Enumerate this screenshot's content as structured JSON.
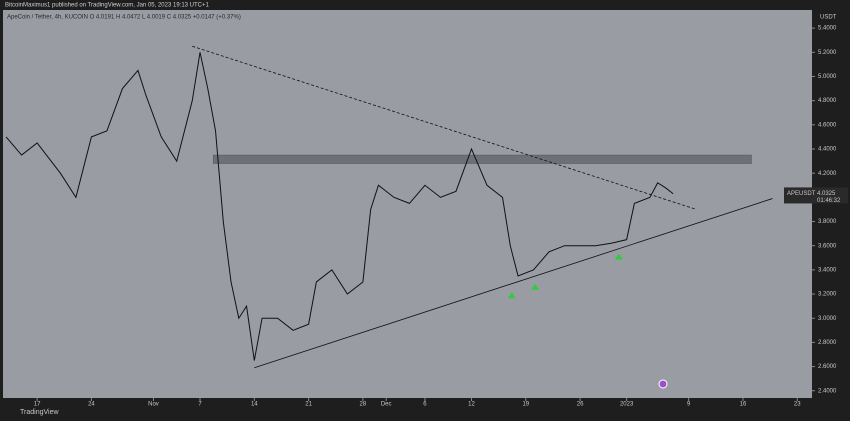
{
  "header": {
    "publisher": "BitcoinMaximus1 published on TradingView.com, Jan 05, 2023 19:13 UTC+1",
    "symbol_line": "ApeCoin / Tether, 4h, KUCOIN  O 4.0191  H 4.0472  L 4.0019  C 4.0325  +0.0147 (+0.37%)"
  },
  "footer": {
    "brand": "TradingView"
  },
  "chart_data": {
    "type": "line",
    "currency": "USDT",
    "series_name": "APEUSDT",
    "last_price": "4.0325",
    "countdown": "01:46:32",
    "color": "#111111",
    "x": [
      -4,
      -2,
      0,
      3,
      5,
      7,
      9,
      11,
      13,
      14,
      16,
      18,
      20,
      21,
      22,
      23,
      24,
      25,
      26,
      27,
      28,
      29,
      31,
      33,
      35,
      36,
      38,
      40,
      42,
      43,
      44,
      46,
      48,
      50,
      52,
      54,
      56,
      58,
      60,
      61,
      62,
      64,
      66,
      68,
      70,
      72,
      74,
      76,
      77,
      79,
      80,
      81,
      82
    ],
    "values": [
      4.5,
      4.35,
      4.45,
      4.2,
      4.0,
      4.5,
      4.55,
      4.9,
      5.05,
      4.85,
      4.5,
      4.3,
      4.8,
      5.2,
      4.9,
      4.55,
      3.8,
      3.3,
      3.0,
      3.1,
      2.65,
      3.0,
      3.0,
      2.9,
      2.95,
      3.3,
      3.4,
      3.2,
      3.3,
      3.9,
      4.1,
      4.0,
      3.95,
      4.1,
      4.0,
      4.05,
      4.4,
      4.1,
      4.0,
      3.6,
      3.35,
      3.4,
      3.55,
      3.6,
      3.6,
      3.6,
      3.62,
      3.65,
      3.95,
      4.0,
      4.12,
      4.08,
      4.03
    ],
    "xlim": [
      -4.4,
      99.9
    ],
    "ylim": [
      2.34,
      5.55
    ],
    "xticks": [
      {
        "value": 0,
        "label": "17"
      },
      {
        "value": 7,
        "label": "24"
      },
      {
        "value": 15,
        "label": "Nov"
      },
      {
        "value": 21,
        "label": "7"
      },
      {
        "value": 28,
        "label": "14"
      },
      {
        "value": 35,
        "label": "21"
      },
      {
        "value": 42,
        "label": "28"
      },
      {
        "value": 45,
        "label": "Dec"
      },
      {
        "value": 50,
        "label": "6"
      },
      {
        "value": 56,
        "label": "12"
      },
      {
        "value": 63,
        "label": "19"
      },
      {
        "value": 70,
        "label": "26"
      },
      {
        "value": 76,
        "label": "2023"
      },
      {
        "value": 84,
        "label": "9"
      },
      {
        "value": 91,
        "label": "16"
      },
      {
        "value": 98,
        "label": "23"
      }
    ],
    "yticks": [
      {
        "value": 2.4,
        "label": "2.4000"
      },
      {
        "value": 2.6,
        "label": "2.6000"
      },
      {
        "value": 2.8,
        "label": "2.8000"
      },
      {
        "value": 3.0,
        "label": "3.0000"
      },
      {
        "value": 3.2,
        "label": "3.2000"
      },
      {
        "value": 3.4,
        "label": "3.4000"
      },
      {
        "value": 3.6,
        "label": "3.6000"
      },
      {
        "value": 3.8,
        "label": "3.8000"
      },
      {
        "value": 4.0,
        "label": "4.0000"
      },
      {
        "value": 4.2,
        "label": "4.2000"
      },
      {
        "value": 4.4,
        "label": "4.4000"
      },
      {
        "value": 4.6,
        "label": "4.6000"
      },
      {
        "value": 4.8,
        "label": "4.8000"
      },
      {
        "value": 5.0,
        "label": "5.0000"
      },
      {
        "value": 5.2,
        "label": "5.2000"
      },
      {
        "value": 5.4,
        "label": "5.4000"
      }
    ],
    "trendlines": [
      {
        "style": "dashed",
        "x": [
          20,
          85
        ],
        "y": [
          5.25,
          3.9
        ]
      },
      {
        "style": "solid",
        "x": [
          28,
          94.8
        ],
        "y": [
          2.59,
          3.99
        ]
      }
    ],
    "zone": {
      "x": [
        22.7,
        92.1
      ],
      "y": [
        4.28,
        4.35
      ]
    },
    "markers": {
      "color": "#2ecc40",
      "x": [
        61.2,
        64.2,
        75
      ],
      "y": [
        3.19,
        3.26,
        3.51
      ]
    }
  }
}
